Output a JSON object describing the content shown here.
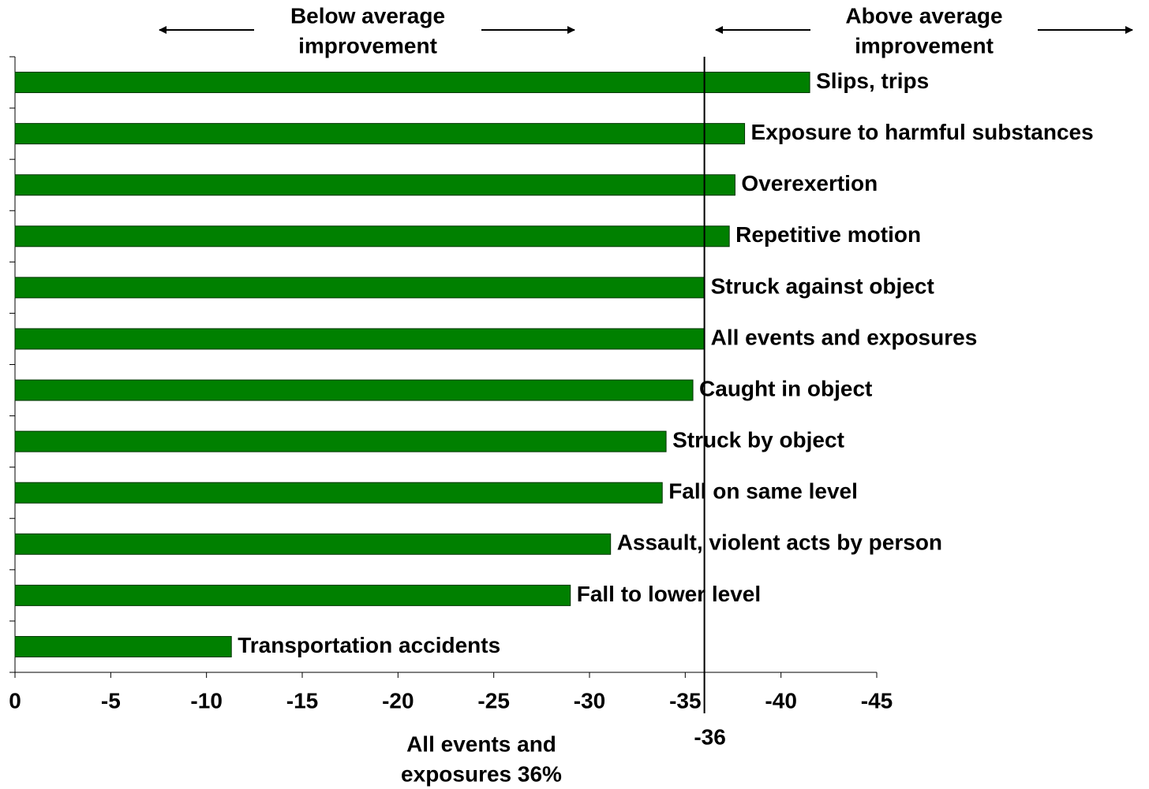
{
  "chart_data": {
    "type": "bar",
    "orientation": "horizontal",
    "categories": [
      "Slips, trips",
      "Exposure to harmful substances",
      "Overexertion",
      "Repetitive motion",
      "Struck against object",
      "All events and exposures",
      "Caught in object",
      "Struck by object",
      "Fall on same level",
      "Assault, violent acts by person",
      "Fall to lower level",
      "Transportation accidents"
    ],
    "values": [
      -41.5,
      -38.1,
      -37.6,
      -37.3,
      -36,
      -36,
      -35.4,
      -34,
      -33.8,
      -31.1,
      -29,
      -11.3
    ],
    "color": "#008000",
    "xlim": [
      0,
      -45
    ],
    "xticks": [
      0,
      -5,
      -10,
      -15,
      -20,
      -25,
      -30,
      -35,
      -40,
      -45
    ],
    "reference_line": -36,
    "below_label": [
      "Below average",
      "improvement"
    ],
    "above_label": [
      "Above average",
      "improvement"
    ],
    "footnote": [
      "All events and",
      "exposures  36%"
    ]
  }
}
